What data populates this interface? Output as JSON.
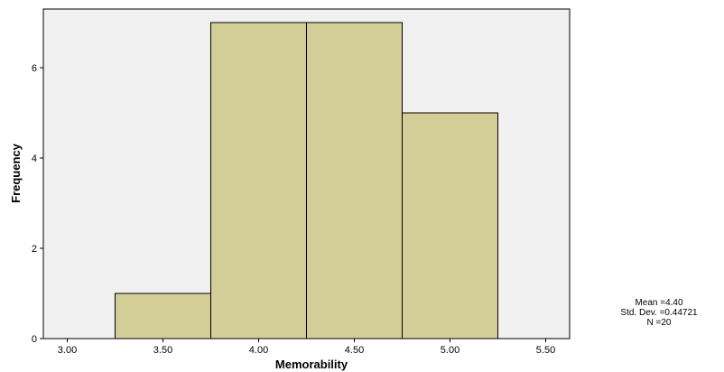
{
  "chart_data": {
    "type": "bar",
    "subtype": "histogram",
    "xlabel": "Memorability",
    "ylabel": "Frequency",
    "bins": [
      {
        "start": 3.25,
        "end": 3.75,
        "count": 1
      },
      {
        "start": 3.75,
        "end": 4.25,
        "count": 7
      },
      {
        "start": 4.25,
        "end": 4.75,
        "count": 7
      },
      {
        "start": 4.75,
        "end": 5.25,
        "count": 5
      }
    ],
    "xlim": [
      2.875,
      5.625
    ],
    "ylim": [
      0,
      7.3
    ],
    "xticks": [
      "3.00",
      "3.50",
      "4.00",
      "4.50",
      "5.00",
      "5.50"
    ],
    "xtick_values": [
      3.0,
      3.5,
      4.0,
      4.5,
      5.0,
      5.5
    ],
    "yticks": [
      "0",
      "2",
      "4",
      "6"
    ],
    "ytick_values": [
      0,
      2,
      4,
      6
    ],
    "grid": false,
    "bar_color": "#d3ce98",
    "plot_background": "#f0f0f0",
    "edge_color": "#000000"
  },
  "stats": {
    "mean": "Mean =4.40",
    "std": "Std. Dev. =0.44721",
    "n": "N =20"
  }
}
